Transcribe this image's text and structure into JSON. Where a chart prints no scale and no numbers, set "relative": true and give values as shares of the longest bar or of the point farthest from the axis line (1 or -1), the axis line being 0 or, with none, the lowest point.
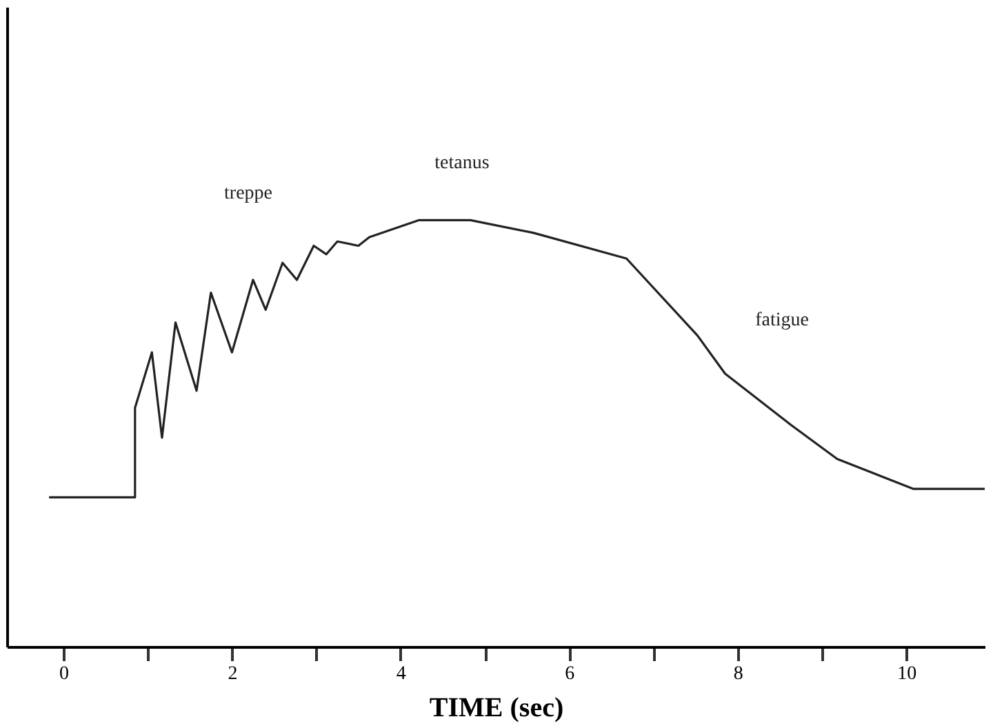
{
  "chart_data": {
    "type": "line",
    "relative": true,
    "xlabel": "TIME (sec)",
    "color": "#222222",
    "x": [
      -0.17,
      0.85,
      0.85,
      1.05,
      1.17,
      1.33,
      1.58,
      1.75,
      2.0,
      2.25,
      2.4,
      2.6,
      2.77,
      2.97,
      3.12,
      3.25,
      3.5,
      3.63,
      4.22,
      4.83,
      5.58,
      6.68,
      7.52,
      7.85,
      8.63,
      9.18,
      10.08,
      10.93
    ],
    "values": [
      0.35,
      0.35,
      0.56,
      0.69,
      0.49,
      0.76,
      0.6,
      0.83,
      0.69,
      0.86,
      0.79,
      0.9,
      0.86,
      0.94,
      0.92,
      0.95,
      0.94,
      0.96,
      1.0,
      1.0,
      0.97,
      0.91,
      0.73,
      0.64,
      0.52,
      0.44,
      0.37,
      0.37
    ],
    "xlim": [
      -0.67,
      10.93
    ],
    "xticks": [
      0,
      {
        "value": 1,
        "label": null
      },
      2,
      {
        "value": 3,
        "label": null
      },
      4,
      {
        "value": 5,
        "label": null
      },
      6,
      {
        "value": 7,
        "label": null
      },
      8,
      {
        "value": 9,
        "label": null
      },
      10
    ],
    "grid": false,
    "marker": "none",
    "line_style": "solid",
    "annotations": [
      "treppe",
      "tetanus",
      "fatigue"
    ]
  }
}
